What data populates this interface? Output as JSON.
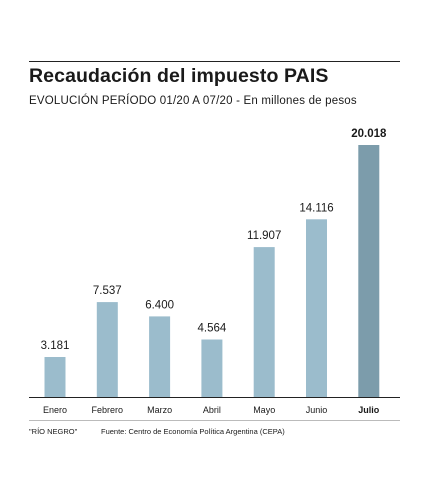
{
  "header": {
    "title": "Recaudación del impuesto PAIS",
    "subtitle": "EVOLUCIÓN PERÍODO 01/20 A 07/20 - En millones de pesos"
  },
  "footer": {
    "credit": "\"RÍO NEGRO\"",
    "source": "Fuente: Centro de Economía Política Argentina (CEPA)"
  },
  "colors": {
    "bar": "#9bbccc",
    "highlight_bar": "#7c9cab",
    "axis": "#222222"
  },
  "chart_data": {
    "type": "bar",
    "title": "Recaudación del impuesto PAIS",
    "subtitle": "EVOLUCIÓN PERÍODO 01/20 A 07/20 - En millones de pesos",
    "xlabel": "",
    "ylabel": "",
    "categories": [
      "Enero",
      "Febrero",
      "Marzo",
      "Abril",
      "Mayo",
      "Junio",
      "Julio"
    ],
    "values": [
      3181,
      7537,
      6400,
      4564,
      11907,
      14116,
      20018
    ],
    "value_labels": [
      "3.181",
      "7.537",
      "6.400",
      "4.564",
      "11.907",
      "14.116",
      "20.018"
    ],
    "highlight": "Julio",
    "ylim": [
      0,
      20018
    ],
    "grid": false,
    "legend": "none"
  }
}
